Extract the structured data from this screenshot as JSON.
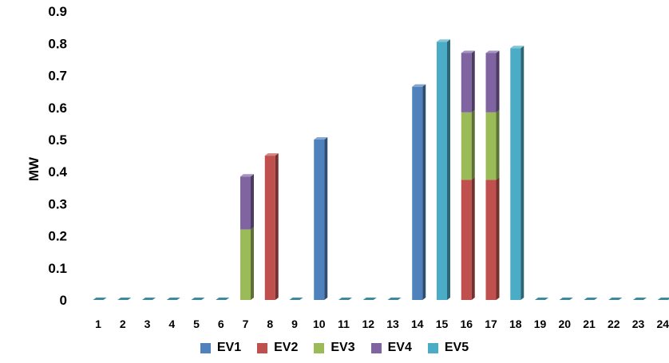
{
  "chart_data": {
    "type": "bar",
    "stacked": true,
    "style": "3d-column",
    "ylabel": "MW",
    "xlabel": "",
    "title": "",
    "ylim": [
      0,
      0.9
    ],
    "yticks": [
      "0",
      "0.1",
      "0.2",
      "0.3",
      "0.4",
      "0.5",
      "0.6",
      "0.7",
      "0.8",
      "0.9"
    ],
    "categories": [
      "1",
      "2",
      "3",
      "4",
      "5",
      "6",
      "7",
      "8",
      "9",
      "10",
      "11",
      "12",
      "13",
      "14",
      "15",
      "16",
      "17",
      "18",
      "19",
      "20",
      "21",
      "22",
      "23",
      "24"
    ],
    "series": [
      {
        "name": "EV1",
        "color": "#4F81BD",
        "values": [
          0,
          0,
          0,
          0,
          0,
          0,
          0,
          0,
          0,
          0.5,
          0,
          0,
          0,
          0.665,
          0,
          0,
          0,
          0,
          0,
          0,
          0,
          0,
          0,
          0
        ]
      },
      {
        "name": "EV2",
        "color": "#C0504D",
        "values": [
          0,
          0,
          0,
          0,
          0,
          0,
          0,
          0.45,
          0,
          0,
          0,
          0,
          0,
          0,
          0,
          0.375,
          0.375,
          0,
          0,
          0,
          0,
          0,
          0,
          0
        ]
      },
      {
        "name": "EV3",
        "color": "#9BBB59",
        "values": [
          0,
          0,
          0,
          0,
          0,
          0,
          0.22,
          0,
          0,
          0,
          0,
          0,
          0,
          0,
          0,
          0.21,
          0.21,
          0,
          0,
          0,
          0,
          0,
          0,
          0
        ]
      },
      {
        "name": "EV4",
        "color": "#8064A2",
        "values": [
          0,
          0,
          0,
          0,
          0,
          0,
          0.165,
          0,
          0,
          0,
          0,
          0,
          0,
          0,
          0,
          0.185,
          0.185,
          0,
          0,
          0,
          0,
          0,
          0,
          0
        ]
      },
      {
        "name": "EV5",
        "color": "#4BACC6",
        "values": [
          0,
          0,
          0,
          0,
          0,
          0,
          0,
          0,
          0,
          0,
          0,
          0,
          0,
          0,
          0.805,
          0,
          0,
          0.785,
          0,
          0,
          0,
          0,
          0,
          0
        ]
      }
    ],
    "legend_position": "bottom",
    "grid": false
  }
}
